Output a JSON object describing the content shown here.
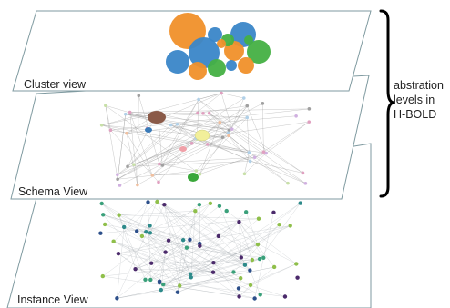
{
  "layers": {
    "cluster": {
      "label": "Cluster view"
    },
    "schema": {
      "label": "Schema View"
    },
    "instance": {
      "label": "Instance View"
    }
  },
  "annotation": {
    "lines": [
      "abstration",
      "levels  in",
      "H-BOLD"
    ]
  },
  "colors": {
    "plane_stroke": "#7f9aa0",
    "brace": "#000000",
    "cluster_palette": [
      "#f0902a",
      "#3a86c8",
      "#45b043"
    ],
    "instance_palette": [
      "#4b2a6b",
      "#2c4f8a",
      "#2d8a8a",
      "#3aa07a",
      "#8fbf4a"
    ]
  }
}
